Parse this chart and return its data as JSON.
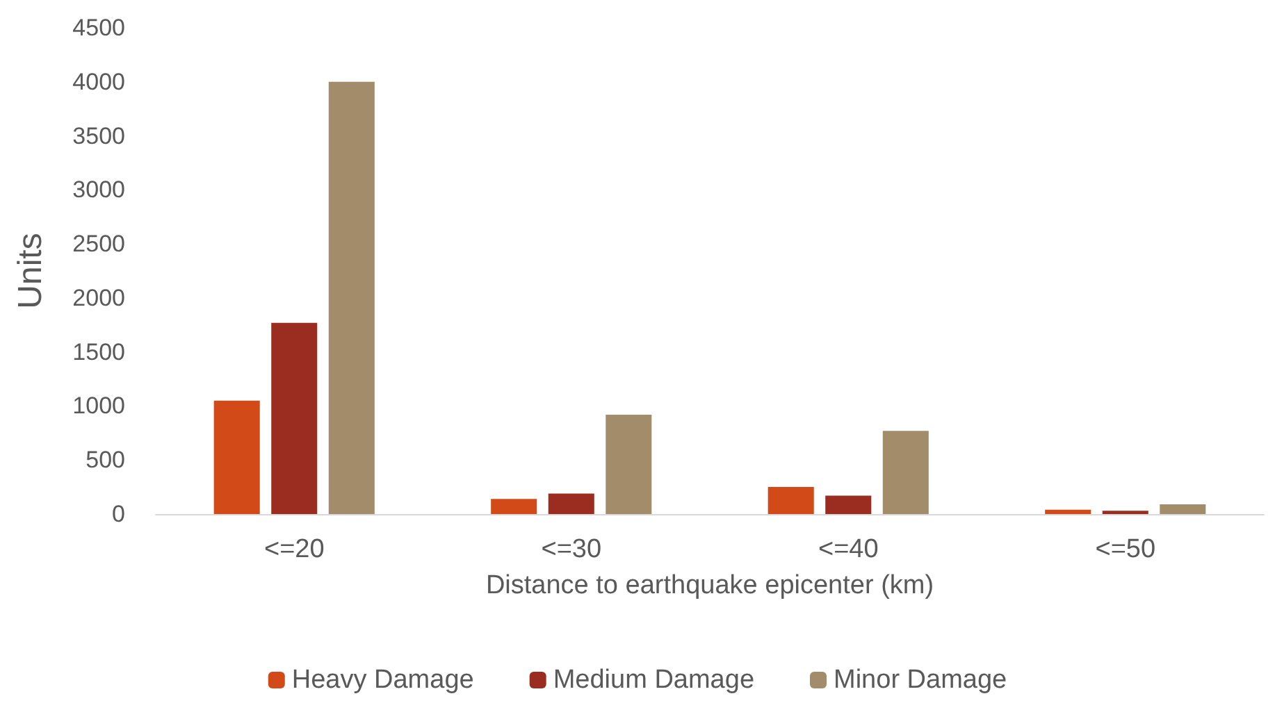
{
  "chart_data": {
    "type": "bar",
    "xlabel": "Distance to earthquake epicenter (km)",
    "ylabel": "Units",
    "categories": [
      "<=20",
      "<=30",
      "<=40",
      "<=50"
    ],
    "series": [
      {
        "name": "Heavy Damage",
        "color": "#d24a17",
        "values": [
          1050,
          140,
          250,
          40
        ]
      },
      {
        "name": "Medium Damage",
        "color": "#9a2d1f",
        "values": [
          1770,
          190,
          170,
          30
        ]
      },
      {
        "name": "Minor Damage",
        "color": "#a38c69",
        "values": [
          4000,
          920,
          770,
          90
        ]
      }
    ],
    "ylim": [
      0,
      4500
    ],
    "yticks": [
      0,
      500,
      1000,
      1500,
      2000,
      2500,
      3000,
      3500,
      4000,
      4500
    ],
    "grid": false,
    "legend": "bottom"
  }
}
